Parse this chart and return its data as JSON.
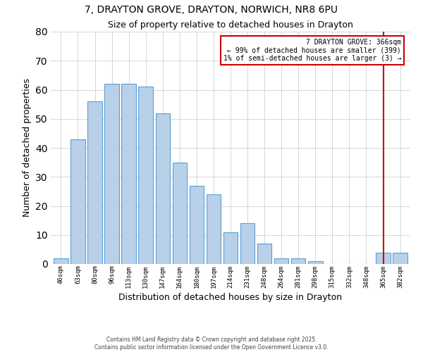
{
  "title": "7, DRAYTON GROVE, DRAYTON, NORWICH, NR8 6PU",
  "subtitle": "Size of property relative to detached houses in Drayton",
  "xlabel": "Distribution of detached houses by size in Drayton",
  "ylabel": "Number of detached properties",
  "bar_labels": [
    "46sqm",
    "63sqm",
    "80sqm",
    "96sqm",
    "113sqm",
    "130sqm",
    "147sqm",
    "164sqm",
    "180sqm",
    "197sqm",
    "214sqm",
    "231sqm",
    "248sqm",
    "264sqm",
    "281sqm",
    "298sqm",
    "315sqm",
    "332sqm",
    "348sqm",
    "365sqm",
    "382sqm"
  ],
  "bar_values": [
    2,
    43,
    56,
    62,
    62,
    61,
    52,
    35,
    27,
    24,
    11,
    14,
    7,
    2,
    2,
    1,
    0,
    0,
    0,
    4,
    4
  ],
  "bar_color": "#b8d0e8",
  "bar_edge_color": "#5a9fd4",
  "ylim": [
    0,
    80
  ],
  "yticks": [
    0,
    10,
    20,
    30,
    40,
    50,
    60,
    70,
    80
  ],
  "vline_x_index": 19,
  "vline_color": "#cc0000",
  "annotation_title": "7 DRAYTON GROVE: 366sqm",
  "annotation_line1": "← 99% of detached houses are smaller (399)",
  "annotation_line2": "1% of semi-detached houses are larger (3) →",
  "annotation_box_edge": "#cc0000",
  "footer1": "Contains HM Land Registry data © Crown copyright and database right 2025.",
  "footer2": "Contains public sector information licensed under the Open Government Licence v3.0.",
  "bg_color": "#ffffff",
  "grid_color": "#d0d0d0"
}
